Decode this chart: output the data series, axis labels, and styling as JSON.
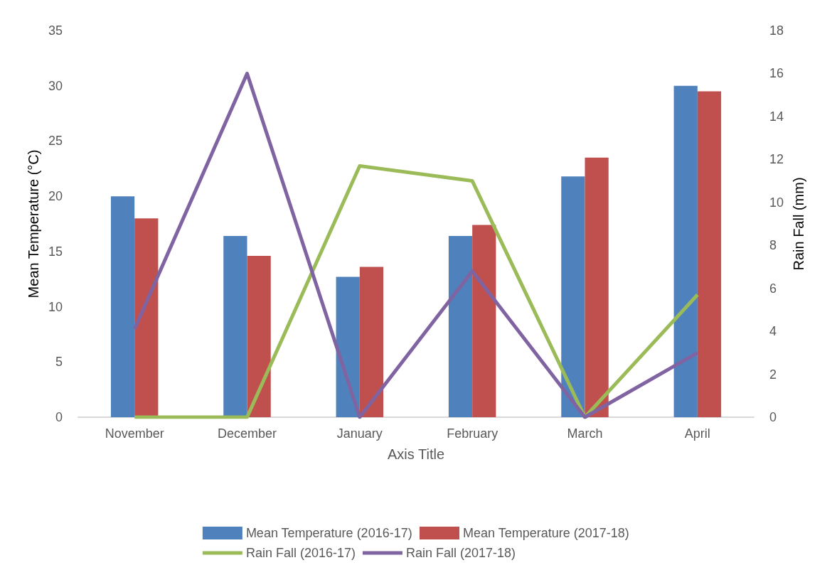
{
  "chart_data": {
    "type": "bar",
    "xlabel": "Axis Title",
    "ylabel": "Mean Temperature (°C)",
    "y2label": "Rain Fall (mm)",
    "categories": [
      "November",
      "December",
      "January",
      "February",
      "March",
      "April"
    ],
    "series": [
      {
        "name": "Mean Temperature (2016-17)",
        "color": "#4f81bd",
        "values": [
          20,
          16.4,
          12.7,
          16.4,
          21.8,
          30
        ]
      },
      {
        "name": "Mean Temperature (2017-18)",
        "color": "#c0504d",
        "values": [
          18,
          14.6,
          13.6,
          17.4,
          23.5,
          29.5
        ]
      },
      {
        "name": "Rain Fall (2016-17)",
        "type": "line",
        "axis": "y2",
        "color": "#9bbb59",
        "values": [
          0,
          0,
          11.7,
          11,
          0,
          5.7
        ]
      },
      {
        "name": "Rain Fall (2017-18)",
        "type": "line",
        "axis": "y2",
        "color": "#8064a2",
        "values": [
          4.1,
          16,
          0,
          6.8,
          0,
          3
        ]
      }
    ],
    "ylim": [
      0,
      35
    ],
    "yticks": [
      0,
      5,
      10,
      15,
      20,
      25,
      30,
      35
    ],
    "y2lim": [
      0,
      18
    ],
    "y2ticks": [
      0,
      2,
      4,
      6,
      8,
      10,
      12,
      14,
      16,
      18
    ],
    "grid": false,
    "legend": "bottom",
    "marker": "none"
  }
}
